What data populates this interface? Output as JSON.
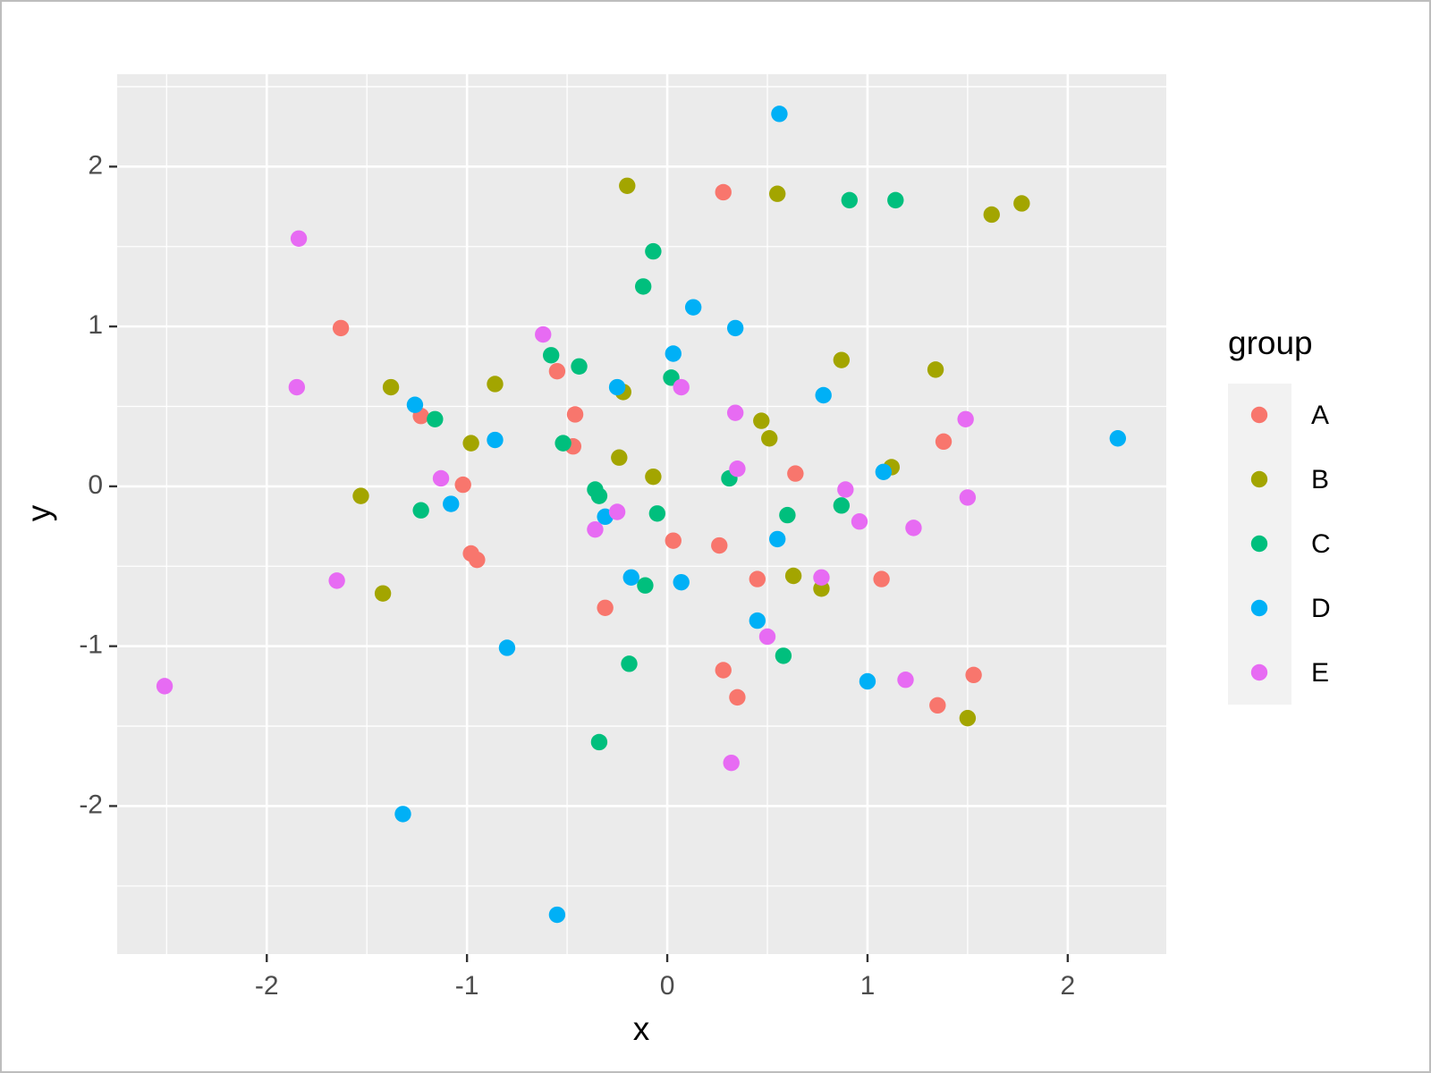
{
  "chart_data": {
    "type": "scatter",
    "xlabel": "x",
    "ylabel": "y",
    "legend_title": "group",
    "legend": "right",
    "xlim": [
      -2.747,
      2.492
    ],
    "ylim": [
      -2.926,
      2.578
    ],
    "xticks": [
      -2,
      -1,
      0,
      1,
      2
    ],
    "yticks": [
      -2,
      -1,
      0,
      1,
      2
    ],
    "grid": true,
    "series": [
      {
        "name": "A",
        "color": "#F8766D",
        "x": [
          0.28,
          -1.63,
          -0.55,
          -1.23,
          -0.46,
          -0.47,
          -1.02,
          -0.98,
          -0.95,
          0.03,
          0.26,
          0.64,
          1.38,
          0.45,
          1.07,
          -0.31,
          0.28,
          0.35,
          1.53,
          1.35
        ],
        "values": [
          1.84,
          0.99,
          0.72,
          0.44,
          0.45,
          0.25,
          0.01,
          -0.42,
          -0.46,
          -0.34,
          -0.37,
          0.08,
          0.28,
          -0.58,
          -0.58,
          -0.76,
          -1.15,
          -1.32,
          -1.18,
          -1.37
        ]
      },
      {
        "name": "B",
        "color": "#A3A500",
        "x": [
          -0.2,
          0.55,
          1.62,
          1.77,
          0.87,
          1.34,
          -1.38,
          -0.86,
          -0.22,
          0.47,
          0.51,
          -0.98,
          -0.24,
          -0.07,
          1.12,
          -1.53,
          0.63,
          0.77,
          -1.42,
          1.5
        ],
        "values": [
          1.88,
          1.83,
          1.7,
          1.77,
          0.79,
          0.73,
          0.62,
          0.64,
          0.59,
          0.41,
          0.3,
          0.27,
          0.18,
          0.06,
          0.12,
          -0.06,
          -0.56,
          -0.64,
          -0.67,
          -1.45
        ]
      },
      {
        "name": "C",
        "color": "#00BF7D",
        "x": [
          -0.07,
          -0.12,
          0.91,
          1.14,
          -0.58,
          -0.44,
          0.02,
          -1.16,
          -0.52,
          0.31,
          -0.36,
          -0.34,
          -1.23,
          -0.05,
          0.6,
          0.87,
          -0.11,
          -0.19,
          0.58,
          -0.34
        ],
        "values": [
          1.47,
          1.25,
          1.79,
          1.79,
          0.82,
          0.75,
          0.68,
          0.42,
          0.27,
          0.05,
          -0.02,
          -0.06,
          -0.15,
          -0.17,
          -0.18,
          -0.12,
          -0.62,
          -1.11,
          -1.06,
          -1.6
        ]
      },
      {
        "name": "D",
        "color": "#00B0F6",
        "x": [
          0.56,
          0.13,
          0.34,
          0.03,
          -1.26,
          -0.25,
          0.78,
          -0.86,
          2.25,
          1.08,
          -1.08,
          -0.31,
          0.55,
          -0.18,
          0.07,
          0.45,
          -0.8,
          1.0,
          -1.32,
          -0.55
        ],
        "values": [
          2.33,
          1.12,
          0.99,
          0.83,
          0.51,
          0.62,
          0.57,
          0.29,
          0.3,
          0.09,
          -0.11,
          -0.19,
          -0.33,
          -0.57,
          -0.6,
          -0.84,
          -1.01,
          -1.22,
          -2.05,
          -2.68
        ]
      },
      {
        "name": "E",
        "color": "#E76BF3",
        "x": [
          -1.84,
          -1.85,
          -0.62,
          0.07,
          0.34,
          1.49,
          0.35,
          -1.13,
          0.89,
          1.5,
          -0.25,
          0.96,
          1.23,
          -0.36,
          -1.65,
          0.77,
          0.5,
          1.19,
          -2.51,
          0.32
        ],
        "values": [
          1.55,
          0.62,
          0.95,
          0.62,
          0.46,
          0.42,
          0.11,
          0.05,
          -0.02,
          -0.07,
          -0.16,
          -0.22,
          -0.26,
          -0.27,
          -0.59,
          -0.57,
          -0.94,
          -1.21,
          -1.25,
          -1.73
        ]
      }
    ]
  }
}
